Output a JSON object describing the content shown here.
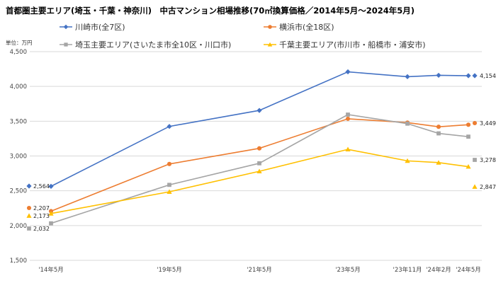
{
  "chart_data": {
    "type": "line",
    "title": "首都圏主要エリア(埼玉・千葉・神奈川)　中古マンション相場推移(70㎡換算価格／2014年5月～2024年5月)",
    "unit_label": "単位：万円",
    "categories": [
      "'14年5月",
      "'19年5月",
      "'21年5月",
      "'23年5月",
      "'23年11月",
      "'24年2月",
      "'24年5月"
    ],
    "ylim": [
      1500,
      4500
    ],
    "yticks": [
      "1,500",
      "2,000",
      "2,500",
      "3,000",
      "3,500",
      "4,000",
      "4,500"
    ],
    "grid": true,
    "legend_position": "top",
    "series": [
      {
        "name": "川崎市(全7区)",
        "color": "#4472C4",
        "marker": "diamond",
        "values": [
          2564,
          3425,
          3655,
          4210,
          4140,
          4160,
          4154
        ],
        "start_label": "2,564",
        "end_label": "4,154"
      },
      {
        "name": "横浜市(全18区)",
        "color": "#ED7D31",
        "marker": "circle",
        "values": [
          2207,
          2885,
          3110,
          3535,
          3480,
          3420,
          3449
        ],
        "start_label": "2,207",
        "end_label": "3,449"
      },
      {
        "name": "埼玉主要エリア(さいたま市全10区・川口市)",
        "color": "#A5A5A5",
        "marker": "square",
        "values": [
          2032,
          2585,
          2895,
          3595,
          3465,
          3325,
          3278
        ],
        "start_label": "2,032",
        "end_label": "3,278"
      },
      {
        "name": "千葉主要エリア(市川市・船橋市・浦安市)",
        "color": "#FFC000",
        "marker": "triangle",
        "values": [
          2173,
          2485,
          2780,
          3095,
          2930,
          2905,
          2847
        ],
        "start_label": "2,173",
        "end_label": "2,847"
      }
    ]
  }
}
